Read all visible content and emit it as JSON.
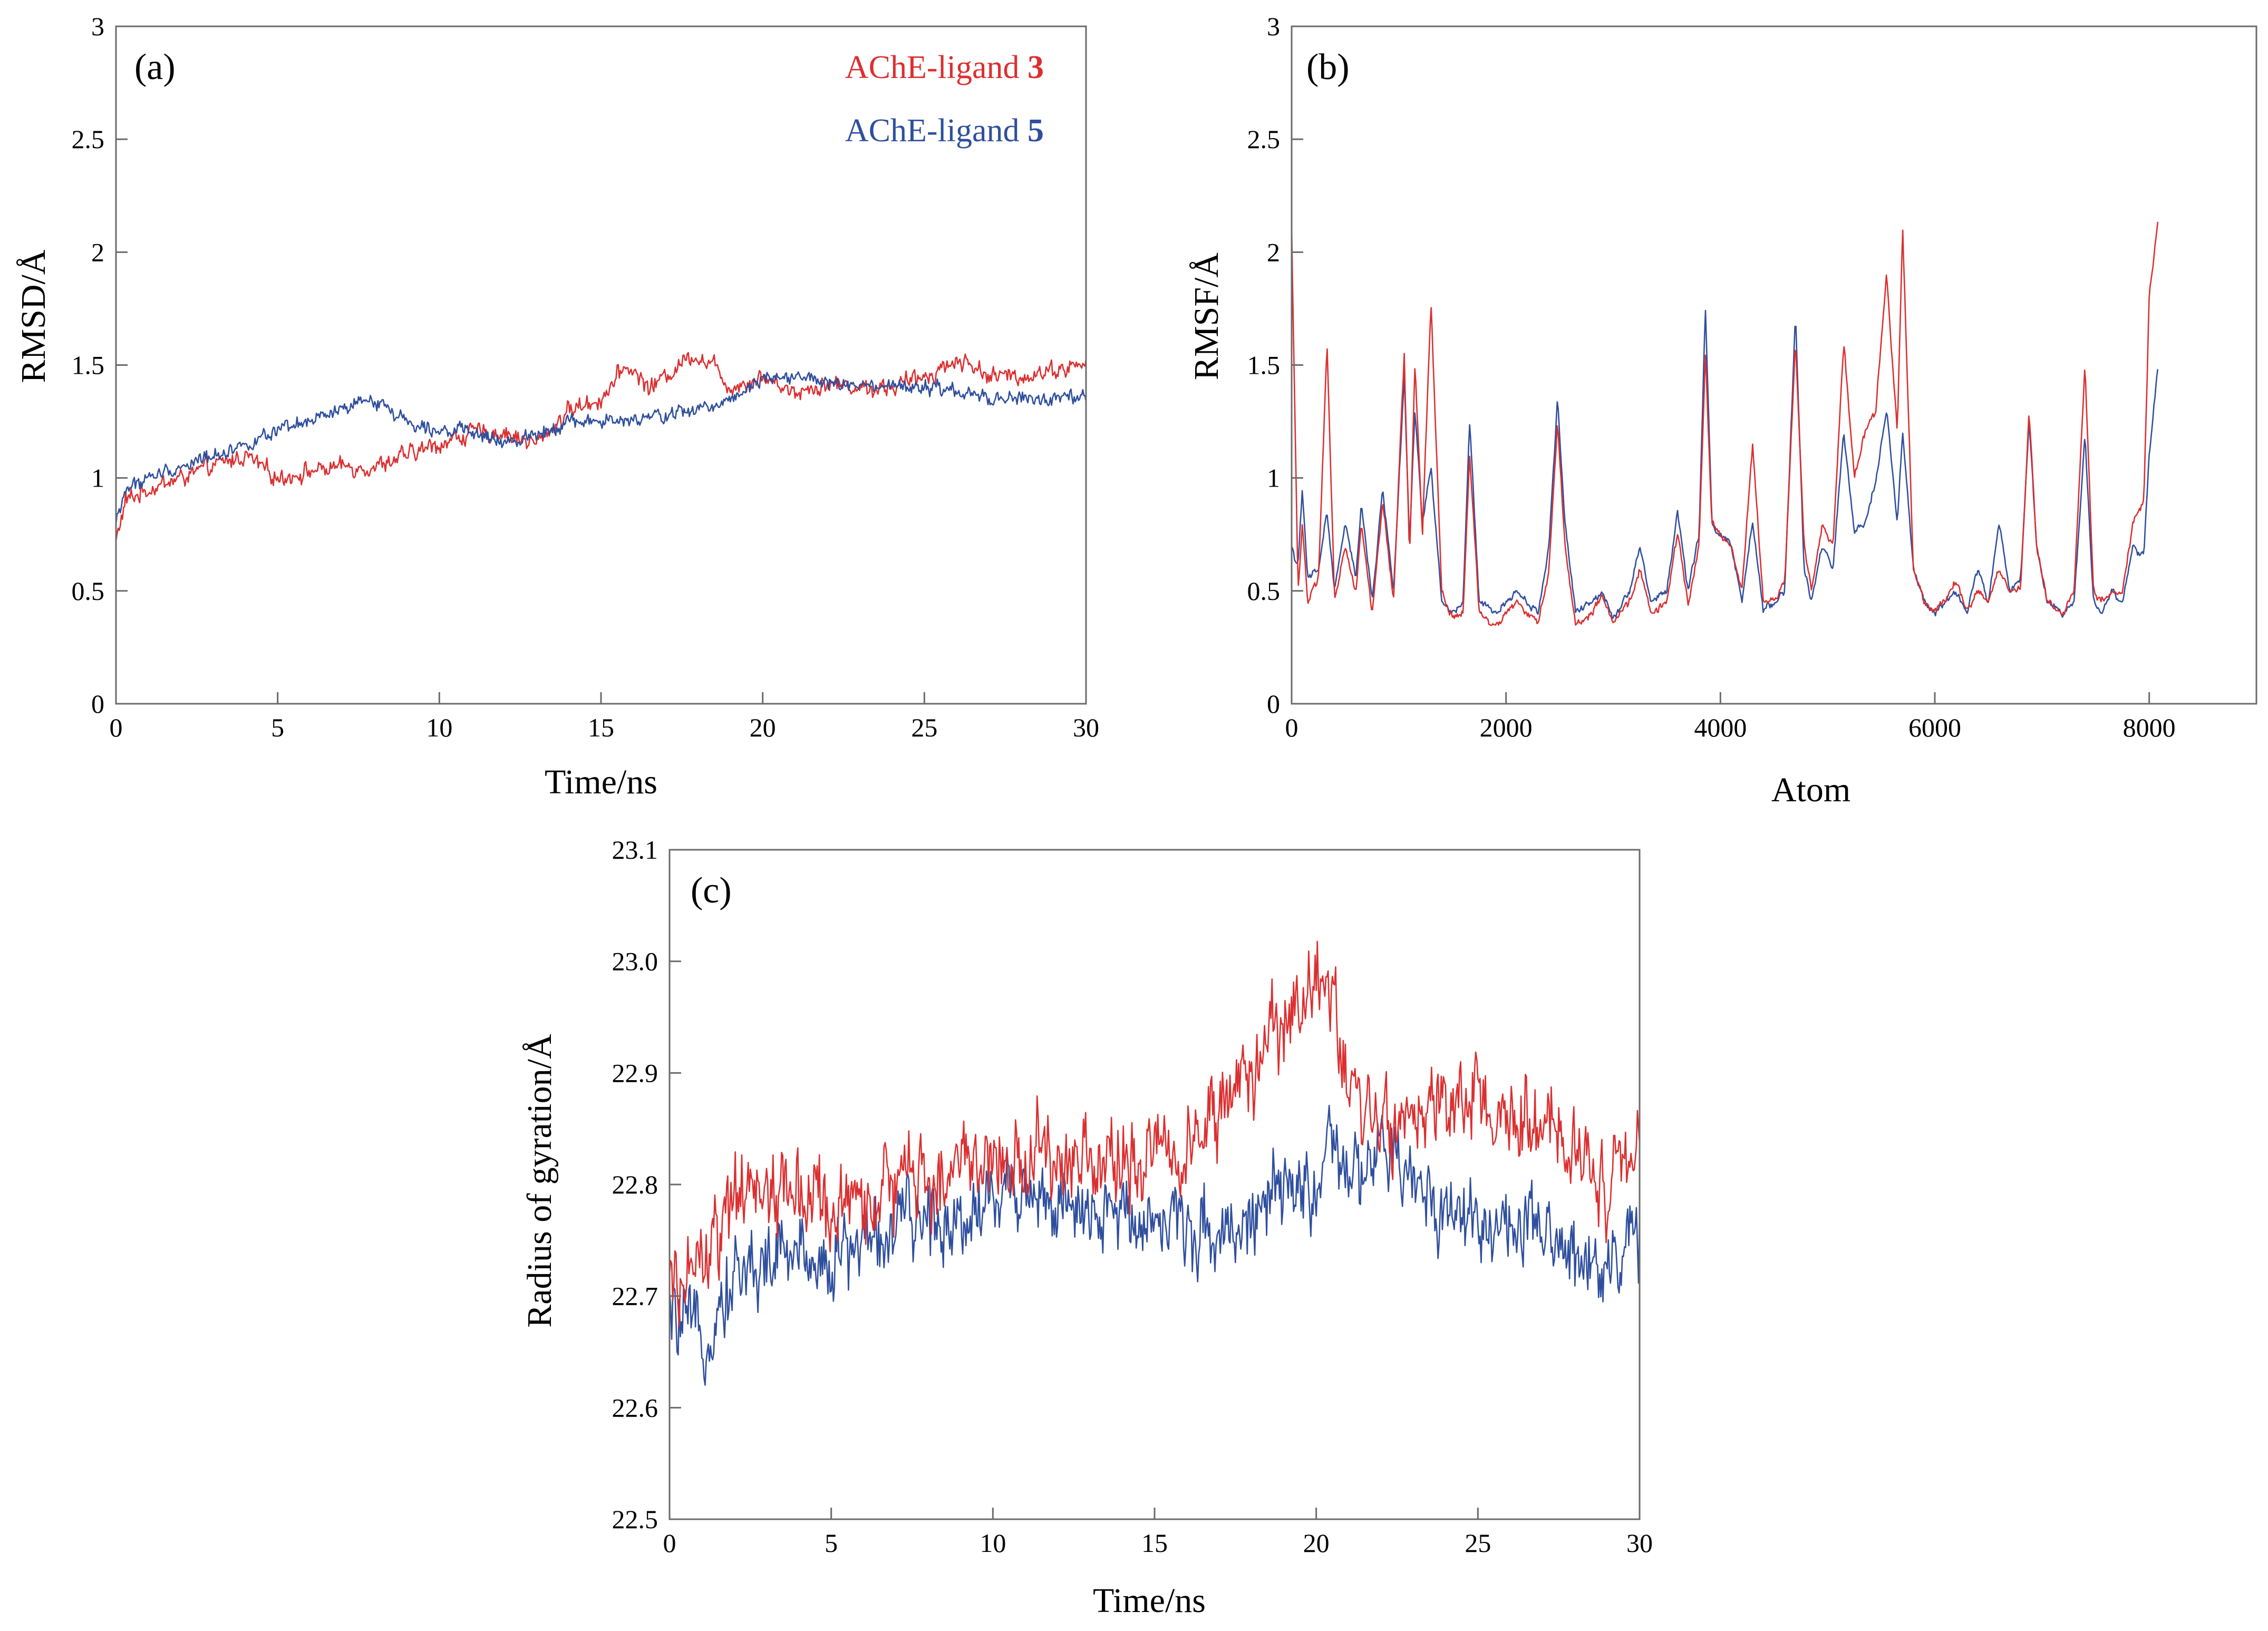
{
  "chart_data": [
    {
      "type": "line",
      "panel_label": "(a)",
      "xlabel": "Time/ns",
      "ylabel": "RMSD/Å",
      "xlim": [
        0,
        30
      ],
      "ylim": [
        0,
        3
      ],
      "x_ticks": [
        "0",
        "5",
        "10",
        "15",
        "20",
        "25",
        "30"
      ],
      "y_ticks": [
        "0",
        "0.5",
        "1",
        "1.5",
        "2",
        "2.5",
        "3"
      ],
      "legend": {
        "position": "top-right",
        "entries": [
          {
            "text": "AChE-ligand ",
            "bold": "3",
            "color": "#dc2f30"
          },
          {
            "text": "AChE-ligand ",
            "bold": "5",
            "color": "#2f4f9e"
          }
        ]
      },
      "series": [
        {
          "name": "AChE-ligand 3",
          "color": "#dc2f30",
          "noise": 0.05,
          "x": [
            0,
            0.3,
            1,
            2,
            3,
            4,
            5,
            6,
            7,
            8,
            9,
            10,
            11,
            12,
            13,
            14,
            15,
            15.8,
            16.5,
            17,
            17.8,
            18.5,
            19,
            20,
            21,
            22,
            23,
            24,
            25,
            26,
            26.5,
            27,
            28,
            29,
            30
          ],
          "values": [
            0.72,
            0.9,
            0.95,
            1.0,
            1.05,
            1.1,
            1.0,
            1.03,
            1.05,
            1.05,
            1.1,
            1.15,
            1.2,
            1.2,
            1.15,
            1.3,
            1.35,
            1.5,
            1.4,
            1.45,
            1.55,
            1.5,
            1.4,
            1.45,
            1.38,
            1.42,
            1.4,
            1.4,
            1.45,
            1.52,
            1.5,
            1.45,
            1.45,
            1.48,
            1.5
          ]
        },
        {
          "name": "AChE-ligand 5",
          "color": "#2f4f9e",
          "noise": 0.04,
          "x": [
            0,
            0.3,
            1,
            2,
            3,
            4,
            5,
            6,
            7,
            8,
            8.5,
            9,
            10,
            11,
            12,
            13,
            14,
            15,
            16,
            17,
            18,
            19,
            20,
            21,
            22,
            23,
            24,
            25,
            26,
            27,
            28,
            29,
            30
          ],
          "values": [
            0.8,
            0.95,
            1.0,
            1.05,
            1.1,
            1.15,
            1.2,
            1.25,
            1.3,
            1.35,
            1.3,
            1.25,
            1.22,
            1.2,
            1.15,
            1.2,
            1.25,
            1.25,
            1.25,
            1.28,
            1.3,
            1.35,
            1.45,
            1.45,
            1.42,
            1.4,
            1.4,
            1.4,
            1.38,
            1.35,
            1.35,
            1.35,
            1.35
          ]
        }
      ]
    },
    {
      "type": "line",
      "panel_label": "(b)",
      "xlabel": "Atom",
      "ylabel": "RMSF/Å",
      "xlim": [
        0,
        9000
      ],
      "ylim": [
        0,
        3
      ],
      "x_ticks": [
        "0",
        "2000",
        "4000",
        "6000",
        "8000"
      ],
      "y_ticks": [
        "0",
        "0.5",
        "1",
        "1.5",
        "2",
        "2.5",
        "3"
      ],
      "series": [
        {
          "name": "AChE-ligand 5",
          "color": "#2f4f9e",
          "noise": 0.02,
          "x": [
            0,
            60,
            100,
            150,
            250,
            330,
            400,
            500,
            600,
            650,
            750,
            850,
            950,
            1050,
            1100,
            1150,
            1220,
            1300,
            1400,
            1500,
            1600,
            1660,
            1750,
            1900,
            2100,
            2300,
            2400,
            2480,
            2550,
            2650,
            2800,
            2900,
            3000,
            3150,
            3250,
            3350,
            3500,
            3600,
            3700,
            3800,
            3860,
            3920,
            4000,
            4100,
            4200,
            4300,
            4400,
            4500,
            4600,
            4700,
            4780,
            4850,
            4950,
            5050,
            5150,
            5250,
            5350,
            5450,
            5550,
            5650,
            5700,
            5800,
            5900,
            6000,
            6100,
            6200,
            6300,
            6400,
            6500,
            6600,
            6700,
            6800,
            6880,
            6950,
            7050,
            7200,
            7300,
            7400,
            7480,
            7550,
            7650,
            7750,
            7850,
            7950,
            8000,
            8080
          ],
          "values": [
            0.7,
            0.6,
            0.95,
            0.55,
            0.6,
            0.85,
            0.5,
            0.8,
            0.55,
            0.9,
            0.45,
            0.95,
            0.5,
            1.45,
            0.7,
            1.3,
            0.8,
            1.05,
            0.45,
            0.4,
            0.45,
            1.25,
            0.45,
            0.4,
            0.5,
            0.4,
            0.7,
            1.35,
            0.8,
            0.4,
            0.45,
            0.5,
            0.38,
            0.5,
            0.7,
            0.45,
            0.5,
            0.85,
            0.5,
            0.75,
            1.75,
            0.8,
            0.75,
            0.7,
            0.45,
            0.8,
            0.42,
            0.45,
            0.5,
            1.72,
            0.6,
            0.45,
            0.7,
            0.6,
            1.2,
            0.75,
            0.8,
            1.0,
            1.3,
            0.8,
            1.2,
            0.6,
            0.45,
            0.4,
            0.45,
            0.5,
            0.4,
            0.6,
            0.45,
            0.8,
            0.5,
            0.55,
            1.25,
            0.7,
            0.45,
            0.4,
            0.45,
            1.2,
            0.45,
            0.4,
            0.5,
            0.45,
            0.7,
            0.65,
            1.1,
            1.48
          ]
        },
        {
          "name": "AChE-ligand 3",
          "color": "#dc2f30",
          "noise": 0.02,
          "x": [
            0,
            60,
            100,
            150,
            250,
            330,
            400,
            500,
            600,
            650,
            750,
            850,
            950,
            1050,
            1100,
            1150,
            1220,
            1300,
            1400,
            1500,
            1600,
            1660,
            1750,
            1900,
            2100,
            2300,
            2400,
            2480,
            2550,
            2650,
            2800,
            2900,
            3000,
            3150,
            3250,
            3350,
            3500,
            3600,
            3700,
            3800,
            3860,
            3920,
            4000,
            4100,
            4200,
            4300,
            4400,
            4500,
            4600,
            4700,
            4780,
            4850,
            4950,
            5050,
            5150,
            5250,
            5350,
            5450,
            5550,
            5650,
            5700,
            5800,
            5900,
            6000,
            6100,
            6200,
            6300,
            6400,
            6500,
            6600,
            6700,
            6800,
            6880,
            6950,
            7050,
            7200,
            7300,
            7400,
            7480,
            7550,
            7650,
            7750,
            7850,
            7950,
            8000,
            8080
          ],
          "values": [
            2.1,
            0.5,
            0.8,
            0.45,
            0.55,
            1.6,
            0.45,
            0.7,
            0.5,
            0.8,
            0.4,
            0.9,
            0.45,
            1.55,
            0.65,
            1.5,
            0.75,
            1.78,
            0.5,
            0.38,
            0.4,
            1.1,
            0.4,
            0.35,
            0.45,
            0.35,
            0.6,
            1.25,
            0.7,
            0.35,
            0.4,
            0.48,
            0.35,
            0.45,
            0.6,
            0.4,
            0.45,
            0.75,
            0.45,
            0.7,
            1.55,
            0.8,
            0.75,
            0.7,
            0.5,
            1.15,
            0.45,
            0.45,
            0.55,
            1.6,
            0.7,
            0.5,
            0.8,
            0.7,
            1.6,
            1.0,
            1.2,
            1.3,
            1.9,
            1.2,
            2.12,
            0.6,
            0.45,
            0.42,
            0.45,
            0.55,
            0.4,
            0.5,
            0.45,
            0.6,
            0.5,
            0.5,
            1.3,
            0.7,
            0.45,
            0.4,
            0.5,
            1.5,
            0.5,
            0.45,
            0.48,
            0.5,
            0.8,
            0.9,
            1.8,
            2.12
          ]
        }
      ]
    },
    {
      "type": "line",
      "panel_label": "(c)",
      "xlabel": "Time/ns",
      "ylabel": "Radius of gyration/Å",
      "xlim": [
        0,
        30
      ],
      "ylim": [
        22.5,
        23.1
      ],
      "x_ticks": [
        "0",
        "5",
        "10",
        "15",
        "20",
        "25",
        "30"
      ],
      "y_ticks": [
        "22.5",
        "22.6",
        "22.7",
        "22.8",
        "22.9",
        "23.0",
        "23.1"
      ],
      "series": [
        {
          "name": "AChE-ligand 5",
          "color": "#2f4f9e",
          "noise": 0.045,
          "x": [
            0,
            1,
            2,
            3,
            4,
            5,
            6,
            7,
            8,
            9,
            10,
            11,
            12,
            13,
            14,
            15,
            16,
            17,
            18,
            19,
            20,
            20.5,
            21,
            22,
            23,
            24,
            25,
            26,
            27,
            28,
            29,
            30
          ],
          "values": [
            22.68,
            22.66,
            22.72,
            22.73,
            22.74,
            22.73,
            22.75,
            22.76,
            22.77,
            22.77,
            22.79,
            22.8,
            22.78,
            22.76,
            22.78,
            22.77,
            22.76,
            22.76,
            22.77,
            22.79,
            22.8,
            22.83,
            22.8,
            22.83,
            22.8,
            22.78,
            22.77,
            22.76,
            22.75,
            22.74,
            22.73,
            22.75
          ]
        },
        {
          "name": "AChE-ligand 3",
          "color": "#dc2f30",
          "noise": 0.05,
          "x": [
            0,
            1,
            2,
            3,
            4,
            5,
            6,
            7,
            8,
            9,
            10,
            11,
            12,
            13,
            14,
            15,
            16,
            17,
            18,
            19,
            20,
            20.5,
            21,
            22,
            23,
            24,
            25,
            26,
            27,
            28,
            29,
            30
          ],
          "values": [
            22.7,
            22.73,
            22.78,
            22.8,
            22.79,
            22.78,
            22.78,
            22.8,
            22.81,
            22.81,
            22.83,
            22.82,
            22.83,
            22.82,
            22.82,
            22.83,
            22.84,
            22.86,
            22.9,
            22.94,
            22.98,
            22.97,
            22.88,
            22.86,
            22.85,
            22.87,
            22.87,
            22.86,
            22.84,
            22.83,
            22.8,
            22.83
          ]
        }
      ]
    }
  ]
}
